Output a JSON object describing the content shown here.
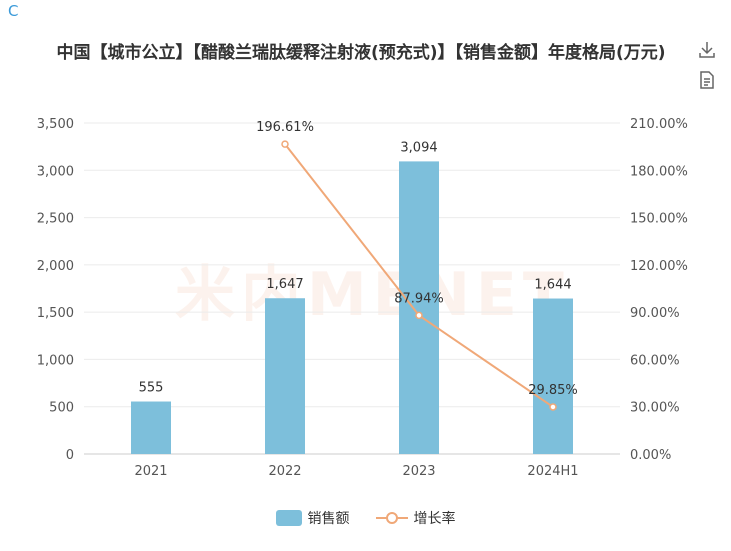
{
  "corner_label": "C",
  "title": "中国【城市公立】【醋酸兰瑞肽缓释注射液(预充式)】【销售金额】年度格局(万元)",
  "toolbar": {
    "download_icon": "download-icon",
    "data_view_icon": "document-icon"
  },
  "watermark": "米内MENET",
  "colors": {
    "bar": "#7dbfdb",
    "line": "#f0a878"
  },
  "chart_data": {
    "type": "bar",
    "categories": [
      "2021",
      "2022",
      "2023",
      "2024H1"
    ],
    "series": [
      {
        "name": "销售额",
        "type": "bar",
        "values": [
          555,
          1647,
          3094,
          1644
        ],
        "labels": [
          "555",
          "1,647",
          "3,094",
          "1,644"
        ]
      },
      {
        "name": "增长率",
        "type": "line",
        "axis": "right",
        "values": [
          null,
          196.61,
          87.94,
          29.85
        ],
        "labels": [
          "",
          "196.61%",
          "87.94%",
          "29.85%"
        ]
      }
    ],
    "y_left": {
      "min": 0,
      "max": 3500,
      "ticks": [
        "0",
        "500",
        "1,000",
        "1,500",
        "2,000",
        "2,500",
        "3,000",
        "3,500"
      ]
    },
    "y_right": {
      "min": 0,
      "max": 210,
      "ticks": [
        "0.00%",
        "30.00%",
        "60.00%",
        "90.00%",
        "120.00%",
        "150.00%",
        "180.00%",
        "210.00%"
      ]
    },
    "grid": true,
    "legend": "bottom-center"
  }
}
